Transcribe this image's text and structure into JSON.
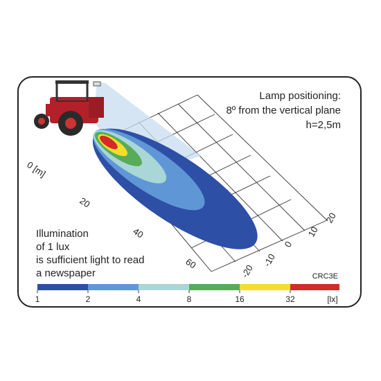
{
  "info": {
    "line1": "Lamp positioning:",
    "line2": "8º from the vertical plane",
    "line3": "h=2,5m"
  },
  "note": {
    "line1": "Illumination",
    "line2": "of 1 lux",
    "line3": "is sufficient light to read",
    "line4": "a newspaper"
  },
  "code": "CRC3E",
  "axis_distance": {
    "unit_label": "0 [m]",
    "ticks": [
      "20",
      "40",
      "60"
    ]
  },
  "axis_lateral": {
    "ticks": [
      "20",
      "10",
      "0",
      "-10",
      "-20"
    ]
  },
  "scale": {
    "unit": "[lx]",
    "ticks": [
      "1",
      "2",
      "4",
      "8",
      "16",
      "32"
    ],
    "colors": [
      "#2e4fa6",
      "#5f97d6",
      "#a9d6d6",
      "#58ab58",
      "#f2df2a",
      "#d42a2a"
    ]
  }
}
